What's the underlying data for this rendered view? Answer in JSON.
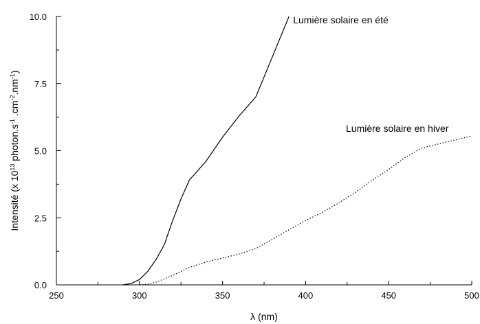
{
  "chart_data": {
    "type": "line",
    "title": "",
    "xlabel": "λ (nm)",
    "ylabel_parts": [
      "Intensité (x 10",
      "13",
      " photon.s",
      "-1",
      " .cm",
      "-2",
      ".nm",
      "-1",
      ")"
    ],
    "xlim": [
      250,
      500
    ],
    "ylim": [
      0,
      10
    ],
    "x_ticks": [
      250,
      300,
      350,
      400,
      450,
      500
    ],
    "x_tick_labels": [
      "250",
      "300",
      "350",
      "400",
      "450",
      "500"
    ],
    "y_ticks": [
      0,
      2.5,
      5,
      7.5,
      10
    ],
    "y_tick_labels": [
      "0.0",
      "2.5",
      "5.0",
      "7.5",
      "10.0"
    ],
    "grid": false,
    "series": [
      {
        "name": "Lumière solaire en été",
        "style": "solid",
        "color": "#000000",
        "x": [
          290,
          295,
          300,
          305,
          310,
          315,
          320,
          325,
          330,
          340,
          350,
          360,
          370,
          380,
          390
        ],
        "y": [
          0,
          0.05,
          0.2,
          0.5,
          0.95,
          1.5,
          2.4,
          3.2,
          3.9,
          4.6,
          5.5,
          6.3,
          7.0,
          8.5,
          10.0
        ]
      },
      {
        "name": "Lumière solaire en hiver",
        "style": "dotted",
        "color": "#000000",
        "x": [
          300,
          305,
          310,
          320,
          330,
          340,
          350,
          360,
          370,
          380,
          390,
          400,
          410,
          420,
          430,
          440,
          450,
          460,
          470,
          480,
          490,
          500
        ],
        "y": [
          0,
          0.02,
          0.1,
          0.35,
          0.65,
          0.85,
          1.0,
          1.15,
          1.35,
          1.7,
          2.05,
          2.4,
          2.7,
          3.05,
          3.45,
          3.9,
          4.3,
          4.75,
          5.1,
          5.25,
          5.4,
          5.55
        ]
      }
    ]
  }
}
